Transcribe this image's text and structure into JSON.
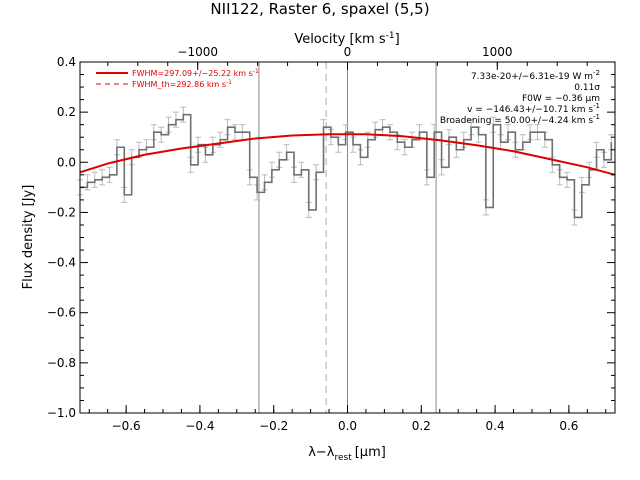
{
  "title": "NII122, Raster 6, spaxel (5,5)",
  "chart_data": {
    "type": "line",
    "title": "NII122, Raster 6, spaxel (5,5)",
    "xlabel": "λ−λ",
    "xlabel_sub": "rest",
    "xlabel_unit": "[μm]",
    "ylabel": "Flux density [Jy]",
    "top_xlabel": "Velocity [km s",
    "top_xlabel_sup": "-1",
    "top_xlabel_end": "]",
    "xlim": [
      -0.725,
      0.725
    ],
    "ylim": [
      -1.0,
      0.4
    ],
    "x_ticks": [
      -0.6,
      -0.4,
      -0.2,
      0.0,
      0.2,
      0.4,
      0.6
    ],
    "x_tick_labels": [
      "−0.6",
      "−0.4",
      "−0.2",
      "0.0",
      "0.2",
      "0.4",
      "0.6"
    ],
    "y_ticks": [
      -1.0,
      -0.8,
      -0.6,
      -0.4,
      -0.2,
      0.0,
      0.2,
      0.4
    ],
    "y_tick_labels": [
      "−1.0",
      "−0.8",
      "−0.6",
      "−0.4",
      "−0.2",
      "0.0",
      "0.2",
      "0.4"
    ],
    "top_ticks": [
      {
        "velocity": -1000,
        "label": "−1000",
        "x": -0.406
      },
      {
        "velocity": 0,
        "label": "0",
        "x": 0.0
      },
      {
        "velocity": 1000,
        "label": "1000",
        "x": 0.406
      }
    ],
    "vertical_lines": [
      {
        "x": -0.24,
        "style": "solid",
        "color": "#888888"
      },
      {
        "x": -0.058,
        "style": "dashed",
        "color": "#aaaaaa"
      },
      {
        "x": 0.0,
        "style": "solid",
        "color": "#888888"
      },
      {
        "x": 0.24,
        "style": "solid",
        "color": "#888888"
      }
    ],
    "series": [
      {
        "kind": "spectrum",
        "color": "#707070",
        "x": [
          -0.725,
          -0.705,
          -0.685,
          -0.665,
          -0.645,
          -0.625,
          -0.605,
          -0.585,
          -0.565,
          -0.545,
          -0.525,
          -0.505,
          -0.485,
          -0.465,
          -0.445,
          -0.425,
          -0.405,
          -0.385,
          -0.365,
          -0.345,
          -0.325,
          -0.305,
          -0.285,
          -0.265,
          -0.245,
          -0.225,
          -0.205,
          -0.185,
          -0.165,
          -0.145,
          -0.125,
          -0.105,
          -0.085,
          -0.065,
          -0.045,
          -0.025,
          -0.005,
          0.015,
          0.035,
          0.055,
          0.075,
          0.095,
          0.115,
          0.135,
          0.155,
          0.175,
          0.195,
          0.215,
          0.235,
          0.255,
          0.275,
          0.295,
          0.315,
          0.335,
          0.355,
          0.375,
          0.395,
          0.415,
          0.435,
          0.455,
          0.475,
          0.495,
          0.515,
          0.535,
          0.555,
          0.575,
          0.595,
          0.615,
          0.635,
          0.655,
          0.675,
          0.695,
          0.715
        ],
        "y": [
          -0.1,
          -0.08,
          -0.07,
          -0.06,
          -0.05,
          0.06,
          -0.13,
          0.02,
          0.05,
          0.06,
          0.12,
          0.11,
          0.15,
          0.17,
          0.19,
          -0.01,
          0.07,
          0.03,
          0.07,
          0.09,
          0.14,
          0.12,
          0.12,
          -0.06,
          -0.12,
          -0.08,
          -0.03,
          0.01,
          0.04,
          -0.05,
          -0.03,
          -0.19,
          -0.04,
          0.14,
          0.1,
          0.07,
          0.12,
          0.07,
          0.02,
          0.09,
          0.13,
          0.14,
          0.12,
          0.08,
          0.06,
          0.09,
          0.12,
          -0.06,
          0.12,
          -0.02,
          0.1,
          0.05,
          0.09,
          0.14,
          0.11,
          -0.18,
          0.15,
          0.08,
          0.12,
          0.05,
          0.08,
          0.12,
          0.12,
          0.09,
          -0.01,
          -0.06,
          -0.07,
          -0.22,
          -0.09,
          -0.03,
          0.05,
          0.01,
          0.08
        ],
        "yerr": 0.03
      },
      {
        "kind": "fit",
        "color": "#e00000",
        "x": [
          -0.725,
          -0.65,
          -0.55,
          -0.45,
          -0.35,
          -0.25,
          -0.15,
          -0.05,
          0.05,
          0.15,
          0.25,
          0.35,
          0.45,
          0.55,
          0.65,
          0.725
        ],
        "y": [
          -0.04,
          -0.005,
          0.03,
          0.055,
          0.075,
          0.095,
          0.107,
          0.112,
          0.112,
          0.104,
          0.088,
          0.068,
          0.044,
          0.012,
          -0.02,
          -0.05
        ]
      }
    ],
    "legend": {
      "placement": "top-left",
      "items": [
        {
          "label": "FWHM=297.09+/−25.22 km s",
          "sup": "-1",
          "style": "solid",
          "color": "#e00000"
        },
        {
          "label": "FWHM_th=292.86 km s",
          "sup": "-1",
          "style": "dashed",
          "color": "#e00000"
        }
      ]
    },
    "annotations": [
      {
        "text": "7.33e-20+/−6.31e-19 W m",
        "sup": "-2"
      },
      {
        "text": "0.11σ",
        "sup": ""
      },
      {
        "text": "F0W = −0.36 μm",
        "sup": ""
      },
      {
        "text": "v = −146.43+/−10.71 km s",
        "sup": "-1"
      },
      {
        "text": "Broadening = 50.00+/−4.24 km s",
        "sup": "-1"
      }
    ]
  }
}
